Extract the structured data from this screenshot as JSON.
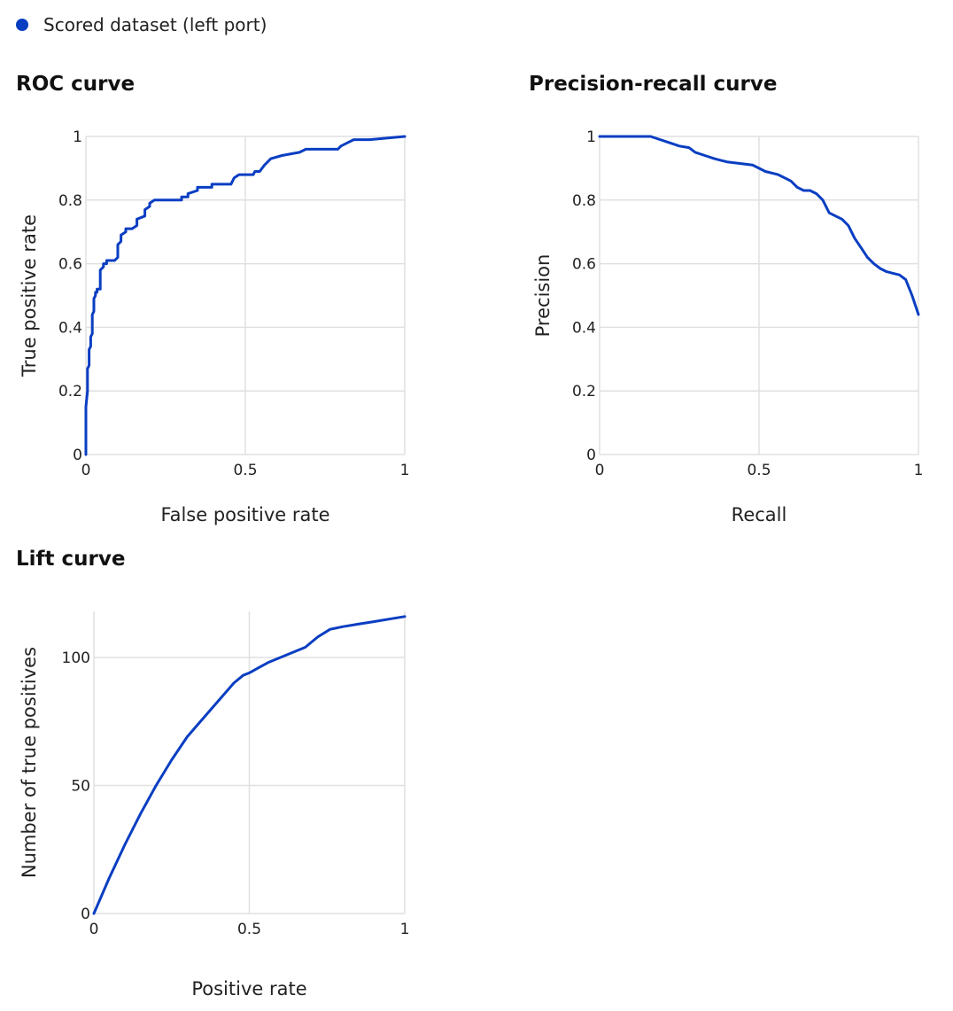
{
  "legend": {
    "label": "Scored dataset (left port)",
    "color": "#0a3ec2"
  },
  "line_color": "#0a3ec2",
  "grid_color": "#e0e0e0",
  "chart_data": [
    {
      "type": "line",
      "title": "ROC curve",
      "xlabel": "False positive rate",
      "ylabel": "True positive rate",
      "xlim": [
        0,
        1
      ],
      "ylim": [
        0,
        1
      ],
      "xticks": [
        0,
        0.5,
        1
      ],
      "xtick_labels": [
        "0",
        "0.5",
        "1"
      ],
      "yticks": [
        0,
        0.2,
        0.4,
        0.6,
        0.8,
        1
      ],
      "ytick_labels": [
        "0",
        "0.2",
        "0.4",
        "0.6",
        "0.8",
        "1"
      ],
      "grid": true,
      "series": [
        {
          "name": "Scored dataset (left port)",
          "x": [
            0,
            0,
            0.005,
            0.005,
            0.01,
            0.01,
            0.015,
            0.015,
            0.02,
            0.02,
            0.025,
            0.025,
            0.03,
            0.03,
            0.035,
            0.035,
            0.045,
            0.045,
            0.055,
            0.055,
            0.065,
            0.065,
            0.075,
            0.09,
            0.1,
            0.1,
            0.11,
            0.11,
            0.125,
            0.125,
            0.145,
            0.16,
            0.16,
            0.185,
            0.185,
            0.2,
            0.2,
            0.215,
            0.23,
            0.3,
            0.3,
            0.32,
            0.32,
            0.35,
            0.35,
            0.395,
            0.395,
            0.455,
            0.46,
            0.465,
            0.48,
            0.525,
            0.53,
            0.545,
            0.56,
            0.58,
            0.615,
            0.67,
            0.69,
            0.79,
            0.8,
            0.82,
            0.84,
            0.89,
            1
          ],
          "y": [
            0,
            0.15,
            0.2,
            0.27,
            0.28,
            0.33,
            0.34,
            0.37,
            0.38,
            0.44,
            0.45,
            0.49,
            0.5,
            0.51,
            0.51,
            0.52,
            0.52,
            0.58,
            0.59,
            0.6,
            0.6,
            0.61,
            0.61,
            0.61,
            0.62,
            0.66,
            0.67,
            0.69,
            0.7,
            0.71,
            0.71,
            0.72,
            0.74,
            0.75,
            0.77,
            0.78,
            0.79,
            0.8,
            0.8,
            0.8,
            0.81,
            0.81,
            0.82,
            0.83,
            0.84,
            0.84,
            0.85,
            0.85,
            0.86,
            0.87,
            0.88,
            0.88,
            0.89,
            0.89,
            0.91,
            0.93,
            0.94,
            0.95,
            0.96,
            0.96,
            0.97,
            0.98,
            0.99,
            0.99,
            1.0
          ]
        }
      ]
    },
    {
      "type": "line",
      "title": "Precision-recall curve",
      "xlabel": "Recall",
      "ylabel": "Precision",
      "xlim": [
        0,
        1
      ],
      "ylim": [
        0,
        1
      ],
      "xticks": [
        0,
        0.5,
        1
      ],
      "xtick_labels": [
        "0",
        "0.5",
        "1"
      ],
      "yticks": [
        0,
        0.2,
        0.4,
        0.6,
        0.8,
        1
      ],
      "ytick_labels": [
        "0",
        "0.2",
        "0.4",
        "0.6",
        "0.8",
        "1"
      ],
      "grid": true,
      "series": [
        {
          "name": "Scored dataset (left port)",
          "x": [
            0,
            0.1,
            0.16,
            0.22,
            0.25,
            0.28,
            0.3,
            0.33,
            0.36,
            0.38,
            0.4,
            0.44,
            0.48,
            0.5,
            0.52,
            0.56,
            0.58,
            0.6,
            0.62,
            0.64,
            0.66,
            0.68,
            0.7,
            0.72,
            0.74,
            0.76,
            0.78,
            0.79,
            0.8,
            0.82,
            0.84,
            0.86,
            0.88,
            0.9,
            0.92,
            0.94,
            0.96,
            0.98,
            1
          ],
          "y": [
            1.0,
            1.0,
            1.0,
            0.98,
            0.97,
            0.965,
            0.95,
            0.94,
            0.93,
            0.925,
            0.92,
            0.915,
            0.91,
            0.9,
            0.89,
            0.88,
            0.87,
            0.86,
            0.84,
            0.83,
            0.83,
            0.82,
            0.8,
            0.76,
            0.75,
            0.74,
            0.72,
            0.7,
            0.68,
            0.65,
            0.62,
            0.6,
            0.585,
            0.575,
            0.57,
            0.565,
            0.55,
            0.5,
            0.44
          ]
        }
      ]
    },
    {
      "type": "line",
      "title": "Lift curve",
      "xlabel": "Positive rate",
      "ylabel": "Number of true positives",
      "xlim": [
        0,
        1
      ],
      "ylim": [
        0,
        118
      ],
      "xticks": [
        0,
        0.5,
        1
      ],
      "xtick_labels": [
        "0",
        "0.5",
        "1"
      ],
      "yticks": [
        0,
        50,
        100
      ],
      "ytick_labels": [
        "0",
        "50",
        "100"
      ],
      "grid": true,
      "series": [
        {
          "name": "Scored dataset (left port)",
          "x": [
            0,
            0.05,
            0.1,
            0.15,
            0.2,
            0.25,
            0.3,
            0.35,
            0.4,
            0.45,
            0.48,
            0.5,
            0.53,
            0.56,
            0.6,
            0.64,
            0.68,
            0.72,
            0.76,
            0.8,
            0.85,
            0.9,
            0.95,
            1
          ],
          "y": [
            0,
            14,
            27,
            39,
            50,
            60,
            69,
            76,
            83,
            90,
            93,
            94,
            96,
            98,
            100,
            102,
            104,
            108,
            111,
            112,
            113,
            114,
            115,
            116
          ]
        }
      ]
    }
  ]
}
